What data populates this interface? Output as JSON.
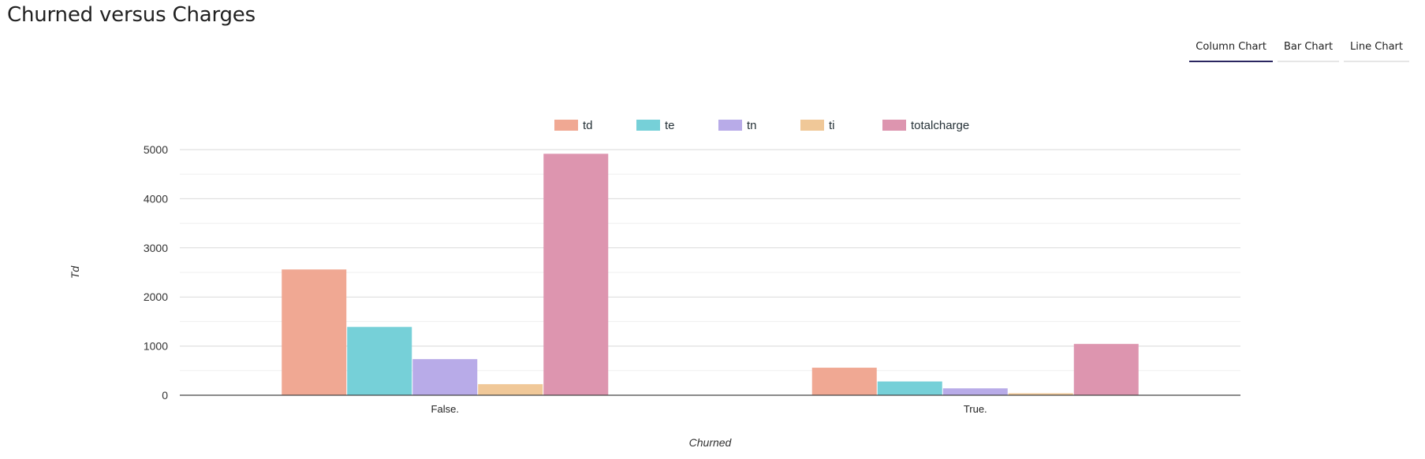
{
  "title": "Churned versus Charges",
  "tabs": [
    {
      "label": "Column Chart",
      "active": true
    },
    {
      "label": "Bar Chart",
      "active": false
    },
    {
      "label": "Line Chart",
      "active": false
    }
  ],
  "chart_data": {
    "type": "bar",
    "categories": [
      "False.",
      "True."
    ],
    "series": [
      {
        "name": "td",
        "color": "#f0a893",
        "values": [
          2560,
          560
        ]
      },
      {
        "name": "te",
        "color": "#76d0d8",
        "values": [
          1390,
          280
        ]
      },
      {
        "name": "tn",
        "color": "#b8abe8",
        "values": [
          735,
          140
        ]
      },
      {
        "name": "ti",
        "color": "#f0c898",
        "values": [
          225,
          40
        ]
      },
      {
        "name": "totalcharge",
        "color": "#dd95af",
        "values": [
          4915,
          1045
        ]
      }
    ],
    "xlabel": "Churned",
    "ylabel": "Td",
    "ylim": [
      0,
      5000
    ],
    "yticks": [
      0,
      1000,
      2000,
      3000,
      4000,
      5000
    ],
    "grid": true,
    "legend": "top-center"
  }
}
